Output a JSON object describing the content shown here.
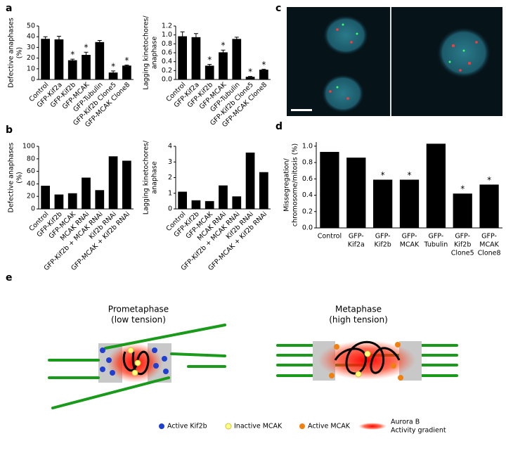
{
  "panels": [
    "a",
    "b",
    "c",
    "d",
    "e"
  ],
  "chart_data": [
    {
      "type": "bar",
      "ylabel": [
        "Defective anaphases",
        "(%)"
      ],
      "color": "#000000",
      "categories": [
        "Control",
        "GFP-Kif2a",
        "GFP-Kif2b",
        "GFP-MCAK",
        "GFP-Tubulin",
        "GFP-Kif2b Clone5",
        "GFP-MCAK Clone8"
      ],
      "values": [
        38,
        37.5,
        18,
        23,
        35,
        6.5,
        13
      ],
      "errors": [
        2,
        3,
        1,
        2.5,
        1.5,
        1.5,
        0.5
      ],
      "significant": [
        false,
        false,
        true,
        true,
        false,
        true,
        true
      ],
      "annotation_text": "*",
      "ylim": [
        0,
        50
      ],
      "yticks": [
        0,
        10,
        20,
        30,
        40,
        50
      ]
    },
    {
      "type": "bar",
      "ylabel": [
        "Lagging kinetochores/",
        "anaphase"
      ],
      "color": "#000000",
      "categories": [
        "Control",
        "GFP-Kif2a",
        "GFP-Kif2b",
        "GFP-MCAK",
        "GFP-Tubulin",
        "GFP-Kif2b Clone5",
        "GFP-MCAK Clone8"
      ],
      "values": [
        0.97,
        0.95,
        0.31,
        0.61,
        0.91,
        0.06,
        0.22
      ],
      "errors": [
        0.1,
        0.08,
        0.03,
        0.05,
        0.04,
        0.01,
        0.01
      ],
      "significant": [
        false,
        false,
        true,
        true,
        false,
        true,
        true
      ],
      "annotation_text": "*",
      "ylim": [
        0,
        1.2
      ],
      "yticks": [
        {
          "value": 0,
          "label": "0.0"
        },
        0.2,
        0.4,
        0.6,
        0.8,
        {
          "value": 1,
          "label": "1.0"
        },
        1.2
      ]
    },
    {
      "type": "bar",
      "ylabel": [
        "Defective anaphases",
        "(%)"
      ],
      "color": "#000000",
      "categories": [
        "Control",
        "GFP-Kif2b",
        "GFP-MCAK",
        "MCAK RNAi",
        "GFP-Kif2b + MCAK RNAi",
        "Kif2b RNAi",
        "GFP-MCAK + Kif2b RNAi"
      ],
      "values": [
        37,
        23,
        25,
        50,
        30,
        84,
        77
      ],
      "ylim": [
        0,
        100
      ],
      "yticks": [
        0,
        20,
        40,
        60,
        80,
        100
      ]
    },
    {
      "type": "bar",
      "ylabel": [
        "Lagging kinetochores/",
        "anaphase"
      ],
      "color": "#000000",
      "categories": [
        "Control",
        "GFP-Kif2b",
        "GFP-MCAK",
        "MCAK RNAi",
        "GFP-Kif2b + MCAK RNAi",
        "Kif2b RNAi",
        "GFP-MCAK + Kif2b RNAi"
      ],
      "values": [
        1.1,
        0.55,
        0.5,
        1.5,
        0.8,
        3.6,
        2.35
      ],
      "ylim": [
        0,
        4
      ],
      "yticks": [
        0,
        1,
        2,
        3,
        4
      ]
    },
    {
      "type": "bar",
      "ylabel": [
        "Missegregation/",
        "chromosome/mitosis (%)"
      ],
      "color": "#000000",
      "categories": [
        [
          "Control"
        ],
        [
          "GFP-",
          "Kif2a"
        ],
        [
          "GFP-",
          "Kif2b"
        ],
        [
          "GFP-",
          "MCAK"
        ],
        [
          "GFP-",
          "Tubulin"
        ],
        [
          "GFP-",
          "Kif2b",
          "Clone5"
        ],
        [
          "GFP-",
          "MCAK",
          "Clone8"
        ]
      ],
      "values": [
        0.93,
        0.86,
        0.59,
        0.59,
        1.03,
        0.42,
        0.53
      ],
      "significant": [
        false,
        false,
        true,
        true,
        false,
        true,
        true
      ],
      "annotation_text": "*",
      "ylim": [
        0,
        1.05
      ],
      "yticks": [
        {
          "value": 0,
          "label": "0.0"
        },
        0.2,
        0.4,
        0.6,
        0.8,
        {
          "value": 1,
          "label": "1.0"
        }
      ]
    }
  ],
  "diagram": {
    "prometaphase": [
      "Prometaphase",
      "(low tension)"
    ],
    "metaphase": [
      "Metaphase",
      "(high tension)"
    ],
    "legend": {
      "active_kif2b": "Active Kif2b",
      "inactive_mcak": "Inactive MCAK",
      "active_mcak": "Active MCAK",
      "aurora": [
        "Aurora B",
        "Activity gradient"
      ]
    }
  }
}
